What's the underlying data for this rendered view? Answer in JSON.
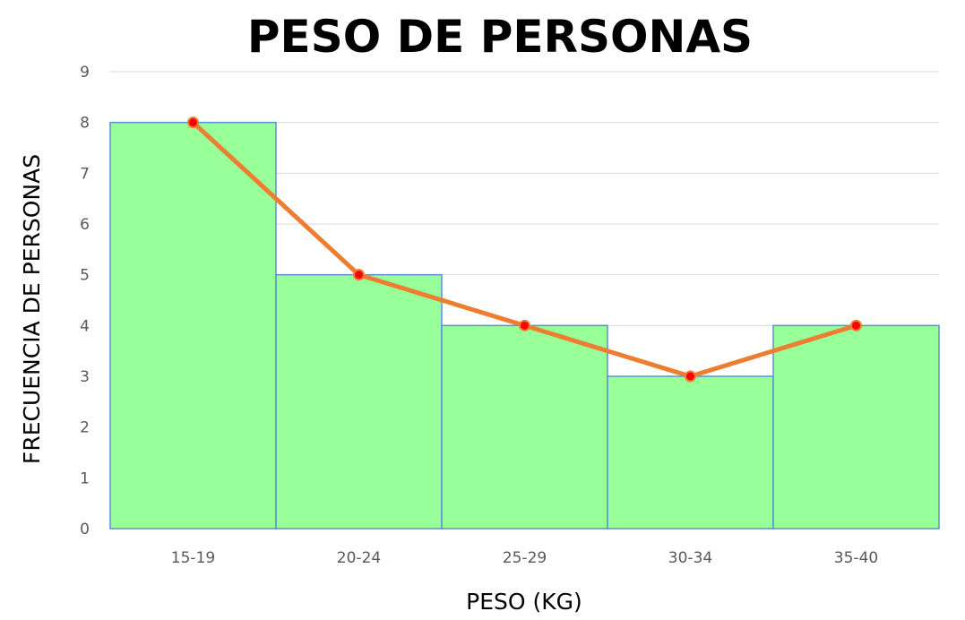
{
  "chart_data": {
    "type": "bar",
    "title": "PESO DE PERSONAS",
    "xlabel": "PESO (KG)",
    "ylabel": "FRECUENCIA DE PERSONAS",
    "categories": [
      "15-19",
      "20-24",
      "25-29",
      "30-34",
      "35-40"
    ],
    "values": [
      8,
      5,
      4,
      3,
      4
    ],
    "ylim": [
      0,
      9
    ],
    "yticks": [
      "0",
      "1",
      "2",
      "3",
      "4",
      "5",
      "6",
      "7",
      "8",
      "9"
    ],
    "grid": true,
    "legend": "none",
    "overlay": {
      "type": "line",
      "values": [
        8,
        5,
        4,
        3,
        4
      ],
      "color": "#ed7d31",
      "marker_color": "#ff0000"
    },
    "bar_color": "#99ff99",
    "bar_edge_color": "#5b8fd6"
  }
}
